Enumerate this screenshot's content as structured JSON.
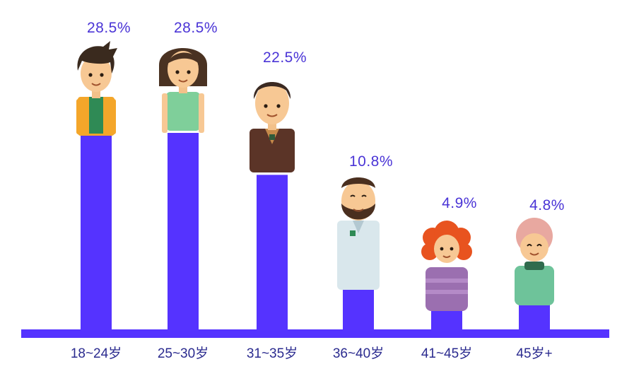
{
  "colors": {
    "bar": "#5533ff",
    "label": "#4a34d6",
    "category": "#2b2b8f"
  },
  "chart_data": {
    "type": "bar",
    "title": "",
    "xlabel": "",
    "ylabel": "",
    "categories": [
      "18~24岁",
      "25~30岁",
      "31~35岁",
      "36~40岁",
      "41~45岁",
      "45岁+"
    ],
    "values": [
      28.5,
      28.5,
      22.5,
      10.8,
      4.9,
      4.8
    ],
    "value_labels": [
      "28.5%",
      "28.5%",
      "22.5%",
      "10.8%",
      "4.9%",
      "4.8%"
    ],
    "ylim": [
      0,
      30
    ],
    "grid": false,
    "legend": "none"
  },
  "illustrations": [
    "young-man-yellow-jacket-icon",
    "young-woman-green-top-icon",
    "man-brown-jacket-icon",
    "bearded-man-white-coat-icon",
    "curly-red-hair-child-icon",
    "elderly-woman-green-sweater-icon"
  ]
}
